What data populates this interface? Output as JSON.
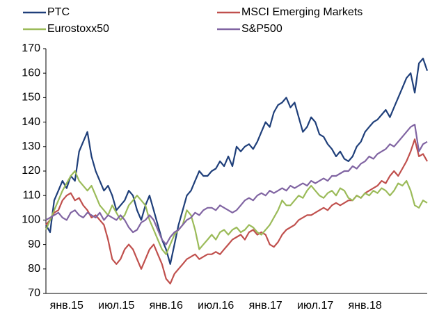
{
  "chart_data": {
    "type": "line",
    "categories": [
      null,
      null,
      null,
      null,
      null,
      "янв.15",
      null,
      null,
      null,
      null,
      null,
      null,
      null,
      null,
      null,
      null,
      null,
      "июл.15",
      null,
      null,
      null,
      null,
      null,
      null,
      null,
      null,
      null,
      null,
      null,
      "янв.16",
      null,
      null,
      null,
      null,
      null,
      null,
      null,
      null,
      null,
      null,
      null,
      "июл.16",
      null,
      null,
      null,
      null,
      null,
      null,
      null,
      null,
      null,
      null,
      null,
      "янв.17",
      null,
      null,
      null,
      null,
      null,
      null,
      null,
      null,
      null,
      null,
      null,
      "июл.17",
      null,
      null,
      null,
      null,
      null,
      null,
      null,
      null,
      null,
      null,
      null,
      "янв.18",
      null,
      null,
      null,
      null,
      null,
      null,
      null,
      null,
      null,
      null,
      null,
      null,
      null,
      null,
      null
    ],
    "series": [
      {
        "name": "PTC",
        "color": "#1f3f7a",
        "values": [
          98,
          95,
          108,
          112,
          116,
          113,
          118,
          116,
          128,
          132,
          136,
          126,
          120,
          116,
          112,
          114,
          110,
          104,
          106,
          108,
          112,
          110,
          104,
          100,
          106,
          110,
          104,
          98,
          92,
          88,
          82,
          90,
          98,
          104,
          110,
          112,
          116,
          120,
          118,
          118,
          120,
          121,
          124,
          122,
          126,
          122,
          130,
          128,
          130,
          131,
          129,
          132,
          136,
          140,
          138,
          144,
          147,
          148,
          150,
          146,
          148,
          142,
          136,
          138,
          142,
          140,
          135,
          134,
          131,
          129,
          126,
          128,
          125,
          124,
          126,
          130,
          132,
          136,
          138,
          140,
          141,
          143,
          145,
          142,
          146,
          150,
          154,
          158,
          160,
          152,
          164,
          166,
          161
        ]
      },
      {
        "name": "MSCI Emerging Markets",
        "color": "#c0504d",
        "values": [
          98,
          100,
          103,
          104,
          108,
          110,
          111,
          108,
          109,
          106,
          104,
          101,
          102,
          100,
          98,
          92,
          84,
          82,
          84,
          88,
          90,
          88,
          84,
          80,
          84,
          88,
          90,
          86,
          82,
          76,
          74,
          78,
          80,
          82,
          84,
          85,
          86,
          84,
          85,
          86,
          86,
          87,
          86,
          88,
          90,
          92,
          93,
          94,
          92,
          95,
          96,
          94,
          95,
          94,
          90,
          89,
          91,
          94,
          96,
          97,
          98,
          100,
          101,
          102,
          102,
          103,
          104,
          105,
          104,
          106,
          107,
          106,
          107,
          108,
          108,
          110,
          109,
          111,
          112,
          113,
          114,
          116,
          115,
          118,
          120,
          118,
          121,
          124,
          128,
          133,
          126,
          127,
          124
        ]
      },
      {
        "name": "Eurostoxx50",
        "color": "#9bbb59",
        "values": [
          96,
          100,
          104,
          108,
          112,
          115,
          118,
          120,
          116,
          114,
          112,
          114,
          110,
          106,
          104,
          102,
          106,
          103,
          100,
          102,
          106,
          108,
          110,
          108,
          106,
          100,
          96,
          92,
          88,
          86,
          90,
          94,
          96,
          98,
          104,
          102,
          96,
          88,
          90,
          92,
          94,
          92,
          95,
          96,
          94,
          96,
          97,
          95,
          96,
          98,
          97,
          95,
          94,
          96,
          98,
          101,
          104,
          108,
          106,
          106,
          108,
          110,
          109,
          112,
          114,
          112,
          110,
          109,
          111,
          112,
          110,
          113,
          112,
          109,
          108,
          110,
          109,
          111,
          110,
          112,
          111,
          113,
          112,
          110,
          112,
          115,
          114,
          116,
          112,
          106,
          105,
          108,
          107
        ]
      },
      {
        "name": "S&P500",
        "color": "#8064a2",
        "values": [
          100,
          101,
          102,
          103,
          101,
          100,
          103,
          104,
          102,
          101,
          103,
          102,
          101,
          103,
          100,
          102,
          101,
          100,
          102,
          100,
          97,
          95,
          96,
          99,
          100,
          102,
          100,
          96,
          92,
          90,
          93,
          95,
          96,
          98,
          100,
          101,
          103,
          102,
          104,
          105,
          105,
          104,
          106,
          105,
          104,
          103,
          104,
          106,
          108,
          109,
          108,
          110,
          111,
          110,
          112,
          111,
          112,
          113,
          112,
          114,
          113,
          114,
          115,
          114,
          116,
          115,
          116,
          117,
          116,
          118,
          118,
          119,
          120,
          120,
          122,
          121,
          123,
          124,
          126,
          125,
          127,
          128,
          129,
          131,
          130,
          132,
          134,
          136,
          138,
          139,
          128,
          131,
          132
        ]
      }
    ],
    "ylim": [
      70,
      170
    ],
    "yticks": [
      70,
      80,
      90,
      100,
      110,
      120,
      130,
      140,
      150,
      160,
      170
    ],
    "grid": false
  }
}
